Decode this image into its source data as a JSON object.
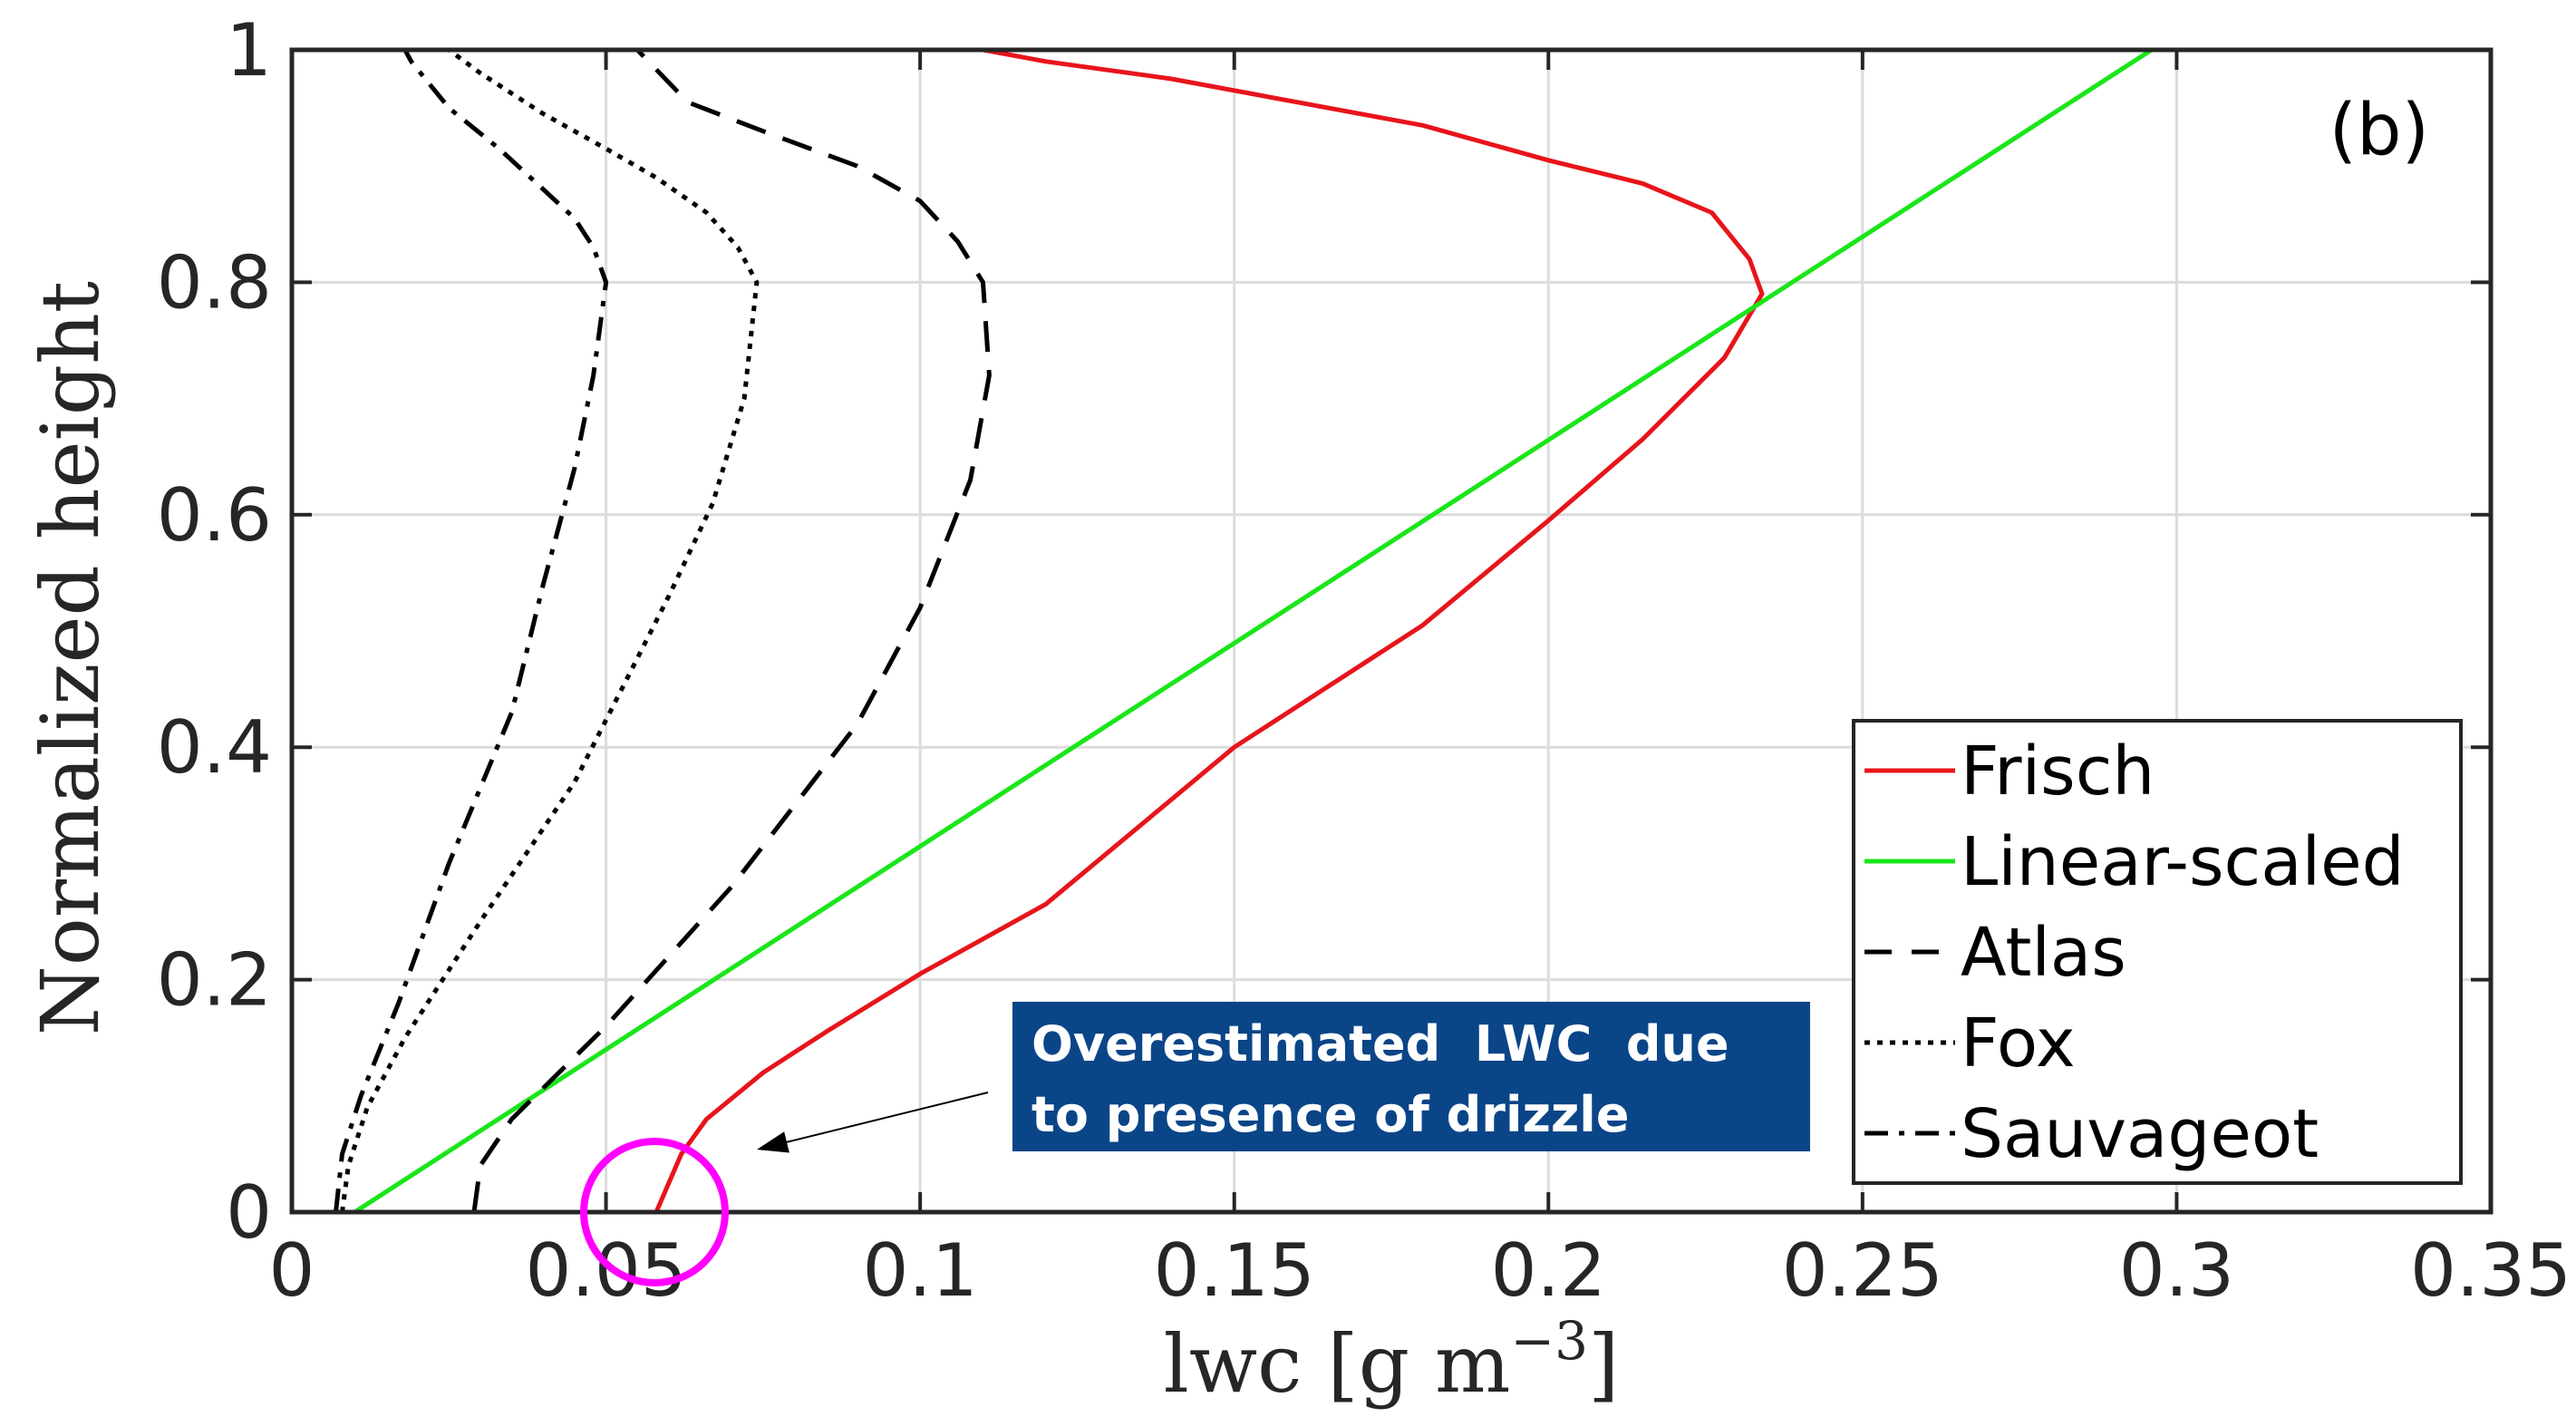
{
  "chart_data": {
    "type": "line",
    "panel_label": "(b)",
    "xlabel": "lwc [g m",
    "xlabel_exponent": "−3",
    "xlabel_suffix": "]",
    "ylabel": "Normalized height",
    "xlim": [
      0,
      0.35
    ],
    "ylim": [
      0,
      1
    ],
    "xticks": [
      0,
      0.05,
      0.1,
      0.15,
      0.2,
      0.25,
      0.3,
      0.35
    ],
    "xtick_labels": [
      "0",
      "0.05",
      "0.1",
      "0.15",
      "0.2",
      "0.25",
      "0.3",
      "0.35"
    ],
    "yticks": [
      0,
      0.2,
      0.4,
      0.6,
      0.8,
      1
    ],
    "ytick_labels": [
      "0",
      "0.2",
      "0.4",
      "0.6",
      "0.8",
      "1"
    ],
    "grid": true,
    "legend_position": "bottom-right",
    "series": [
      {
        "name": "Frisch",
        "color": "#e8141b",
        "style": "solid",
        "points": [
          [
            0.058,
            0
          ],
          [
            0.062,
            0.05
          ],
          [
            0.066,
            0.08
          ],
          [
            0.075,
            0.12
          ],
          [
            0.085,
            0.155
          ],
          [
            0.1,
            0.205
          ],
          [
            0.12,
            0.265
          ],
          [
            0.15,
            0.4
          ],
          [
            0.18,
            0.505
          ],
          [
            0.2,
            0.595
          ],
          [
            0.215,
            0.665
          ],
          [
            0.228,
            0.735
          ],
          [
            0.234,
            0.79
          ],
          [
            0.232,
            0.82
          ],
          [
            0.226,
            0.86
          ],
          [
            0.215,
            0.885
          ],
          [
            0.2,
            0.905
          ],
          [
            0.18,
            0.935
          ],
          [
            0.16,
            0.955
          ],
          [
            0.14,
            0.975
          ],
          [
            0.12,
            0.99
          ],
          [
            0.11,
            1.0
          ]
        ]
      },
      {
        "name": "Linear-scaled",
        "color": "#19e619",
        "style": "solid",
        "points": [
          [
            0.01,
            0
          ],
          [
            0.296,
            1.0
          ]
        ]
      },
      {
        "name": "Atlas",
        "color": "#000000",
        "style": "dashed",
        "points": [
          [
            0.029,
            0
          ],
          [
            0.03,
            0.04
          ],
          [
            0.035,
            0.08
          ],
          [
            0.05,
            0.16
          ],
          [
            0.07,
            0.28
          ],
          [
            0.09,
            0.42
          ],
          [
            0.1,
            0.52
          ],
          [
            0.108,
            0.63
          ],
          [
            0.111,
            0.72
          ],
          [
            0.11,
            0.8
          ],
          [
            0.106,
            0.835
          ],
          [
            0.1,
            0.87
          ],
          [
            0.09,
            0.9
          ],
          [
            0.075,
            0.93
          ],
          [
            0.063,
            0.955
          ],
          [
            0.055,
            1.0
          ]
        ]
      },
      {
        "name": "Fox",
        "color": "#000000",
        "style": "dotted",
        "points": [
          [
            0.008,
            0
          ],
          [
            0.009,
            0.04
          ],
          [
            0.012,
            0.09
          ],
          [
            0.018,
            0.15
          ],
          [
            0.03,
            0.25
          ],
          [
            0.045,
            0.37
          ],
          [
            0.06,
            0.53
          ],
          [
            0.067,
            0.61
          ],
          [
            0.072,
            0.7
          ],
          [
            0.074,
            0.8
          ],
          [
            0.071,
            0.83
          ],
          [
            0.066,
            0.86
          ],
          [
            0.058,
            0.89
          ],
          [
            0.05,
            0.915
          ],
          [
            0.04,
            0.945
          ],
          [
            0.03,
            0.98
          ],
          [
            0.025,
            1.0
          ]
        ]
      },
      {
        "name": "Sauvageot",
        "color": "#000000",
        "style": "dashdot",
        "points": [
          [
            0.007,
            0
          ],
          [
            0.008,
            0.05
          ],
          [
            0.011,
            0.1
          ],
          [
            0.017,
            0.18
          ],
          [
            0.025,
            0.3
          ],
          [
            0.035,
            0.43
          ],
          [
            0.04,
            0.54
          ],
          [
            0.045,
            0.64
          ],
          [
            0.048,
            0.72
          ],
          [
            0.05,
            0.8
          ],
          [
            0.048,
            0.83
          ],
          [
            0.045,
            0.855
          ],
          [
            0.04,
            0.88
          ],
          [
            0.033,
            0.915
          ],
          [
            0.025,
            0.95
          ],
          [
            0.019,
            0.99
          ],
          [
            0.018,
            1.0
          ]
        ]
      }
    ],
    "annotation": {
      "line1": "Overestimated  LWC  due",
      "line2": "to presence of drizzle",
      "box_color": "#0a4588",
      "marker_color": "#ff00ff",
      "circle_center": [
        0.058,
        0.0
      ]
    }
  }
}
